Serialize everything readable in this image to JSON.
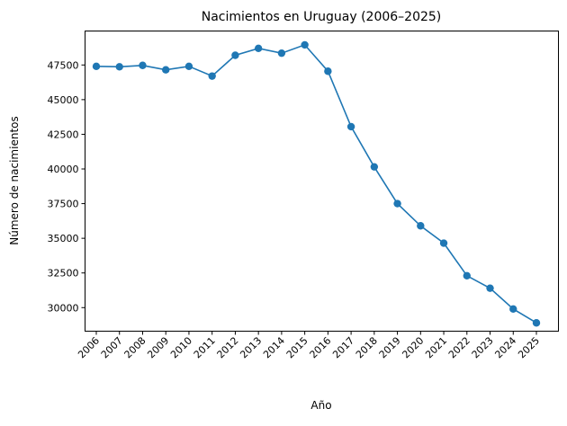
{
  "chart_data": {
    "type": "line",
    "title": "Nacimientos en Uruguay (2006–2025)",
    "xlabel": "Año",
    "ylabel": "Número de nacimientos",
    "categories": [
      "2006",
      "2007",
      "2008",
      "2009",
      "2010",
      "2011",
      "2012",
      "2013",
      "2014",
      "2015",
      "2016",
      "2017",
      "2018",
      "2019",
      "2020",
      "2021",
      "2022",
      "2023",
      "2024",
      "2025"
    ],
    "series": [
      {
        "values": [
          47400,
          47370,
          47470,
          47150,
          47400,
          46700,
          48200,
          48700,
          48350,
          48950,
          47050,
          43050,
          40150,
          37500,
          35900,
          34650,
          32300,
          31400,
          29900,
          28900
        ]
      }
    ],
    "yticks": [
      30000,
      32500,
      35000,
      37500,
      40000,
      42500,
      45000,
      47500
    ],
    "ylim": [
      28300,
      49950
    ],
    "grid": false,
    "color": "#1f77b4"
  }
}
